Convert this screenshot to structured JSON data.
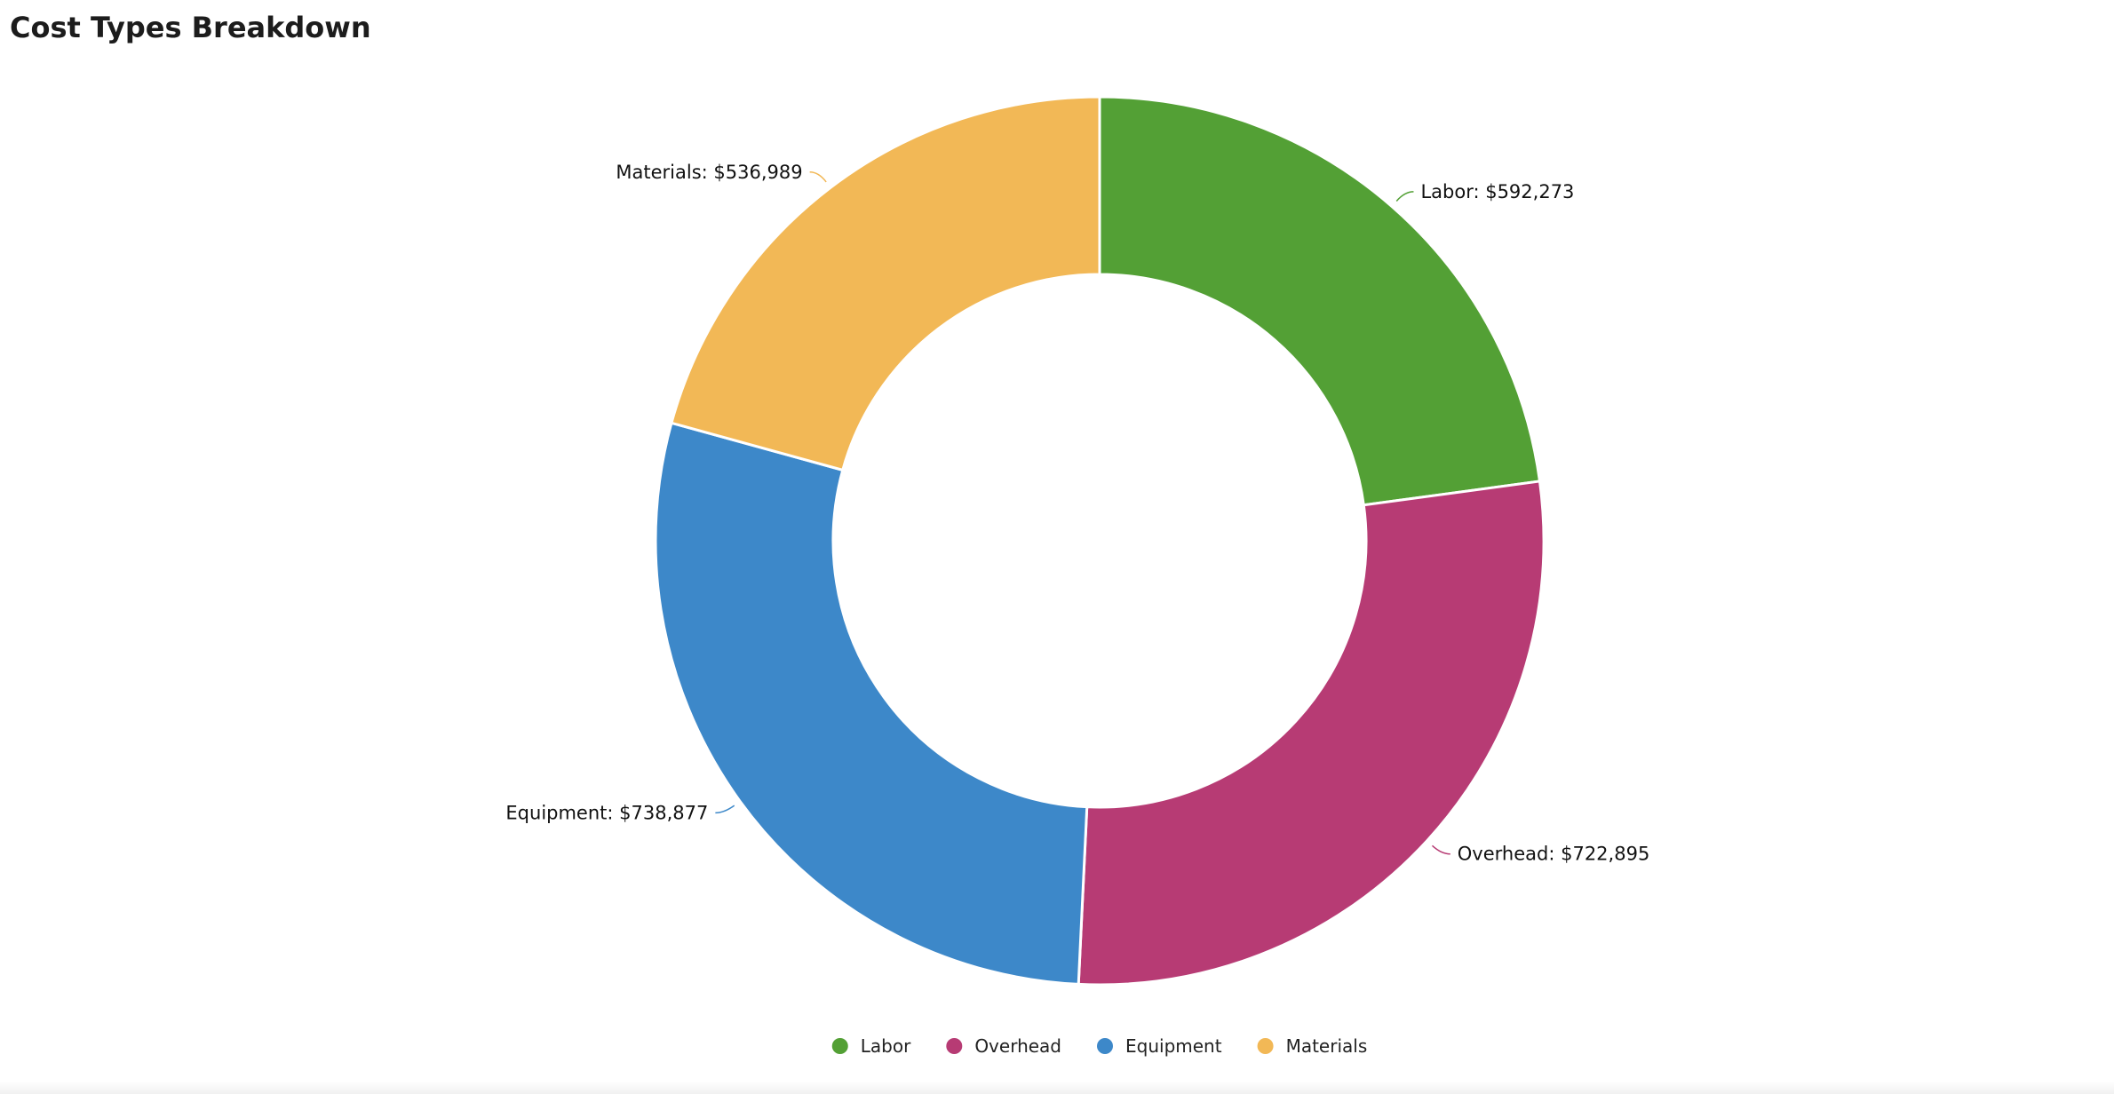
{
  "chart_data": {
    "type": "pie",
    "style": "donut",
    "title": "Cost Types Breakdown",
    "categories": [
      "Labor",
      "Overhead",
      "Equipment",
      "Materials"
    ],
    "values": [
      592273,
      722895,
      738877,
      536989
    ],
    "value_labels": [
      "$592,273",
      "$722,895",
      "$738,877",
      "$536,989"
    ],
    "colors": [
      "#53a035",
      "#b73b74",
      "#3d88c9",
      "#f2b856"
    ],
    "legend": {
      "position": "bottom",
      "entries": [
        "Labor",
        "Overhead",
        "Equipment",
        "Materials"
      ]
    }
  }
}
